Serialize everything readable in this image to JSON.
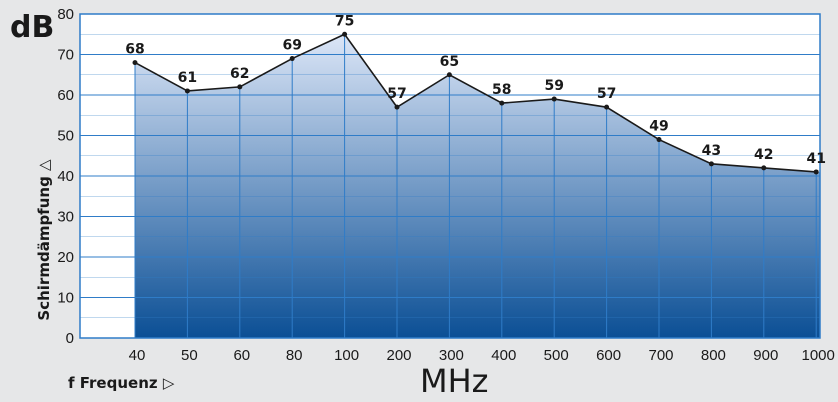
{
  "chart_data": {
    "type": "area",
    "categories": [
      "40",
      "50",
      "60",
      "80",
      "100",
      "200",
      "300",
      "400",
      "500",
      "600",
      "700",
      "800",
      "900",
      "1000"
    ],
    "values": [
      68,
      61,
      62,
      69,
      75,
      57,
      65,
      58,
      59,
      57,
      49,
      43,
      42,
      41
    ],
    "data_labels": [
      "68",
      "61",
      "62",
      "69",
      "75",
      "57",
      "65",
      "58",
      "59",
      "57",
      "49",
      "43",
      "42",
      "41"
    ],
    "y_ticks": [
      "0",
      "10",
      "20",
      "30",
      "40",
      "50",
      "60",
      "70",
      "80"
    ],
    "ylim": [
      0,
      80
    ],
    "ylabel": "Schirmdämpfung",
    "xlabel": "f Frequenz",
    "y_unit": "dB",
    "x_unit": "MHz",
    "grid": true,
    "colors": {
      "fill_top": "#dce6f7",
      "fill_bottom": "#0b4f95",
      "gridline": "#2f7cc8",
      "line": "#1a1a1a",
      "background": "#e6e7e8",
      "plot_background": "#ffffff",
      "frame": "#2f7cc8"
    }
  },
  "labels": {
    "y_arrow": "△",
    "x_arrow": "▷"
  }
}
